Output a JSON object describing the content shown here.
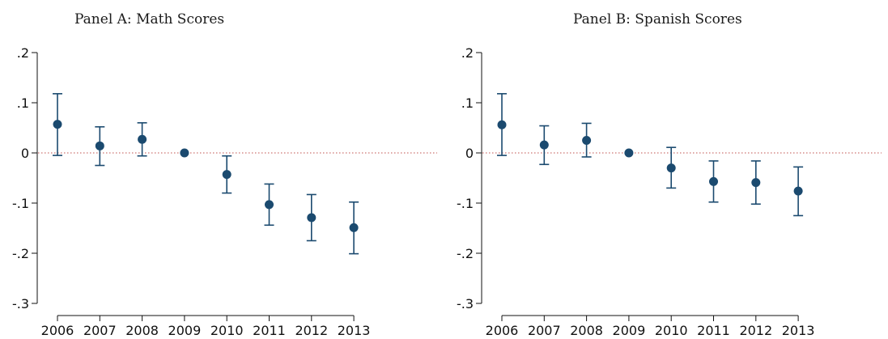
{
  "chart_data": [
    {
      "type": "scatter",
      "title": "Panel A: Math Scores",
      "xlabel": "",
      "ylabel": "",
      "categories": [
        "2006",
        "2007",
        "2008",
        "2009",
        "2010",
        "2011",
        "2012",
        "2013"
      ],
      "values": [
        0.057,
        0.014,
        0.027,
        0.0,
        -0.043,
        -0.103,
        -0.129,
        -0.149
      ],
      "ci_low": [
        -0.005,
        -0.025,
        -0.006,
        0.0,
        -0.08,
        -0.144,
        -0.175,
        -0.201
      ],
      "ci_high": [
        0.118,
        0.052,
        0.06,
        0.0,
        -0.006,
        -0.062,
        -0.083,
        -0.098
      ],
      "ylim": [
        -0.3,
        0.2
      ],
      "yticks": [
        ".2",
        ".1",
        "0",
        "-.1",
        "-.2",
        "-.3"
      ],
      "ytick_values": [
        0.2,
        0.1,
        0.0,
        -0.1,
        -0.2,
        -0.3
      ],
      "reference_line": 0,
      "grid": false,
      "marker_color": "#1b4a6f",
      "reference_line_color": "#c0504d"
    },
    {
      "type": "scatter",
      "title": "Panel B: Spanish Scores",
      "xlabel": "",
      "ylabel": "",
      "categories": [
        "2006",
        "2007",
        "2008",
        "2009",
        "2010",
        "2011",
        "2012",
        "2013"
      ],
      "values": [
        0.056,
        0.016,
        0.025,
        0.0,
        -0.03,
        -0.057,
        -0.059,
        -0.076
      ],
      "ci_low": [
        -0.005,
        -0.023,
        -0.008,
        0.0,
        -0.07,
        -0.098,
        -0.102,
        -0.125
      ],
      "ci_high": [
        0.118,
        0.054,
        0.059,
        0.0,
        0.011,
        -0.016,
        -0.016,
        -0.028
      ],
      "ylim": [
        -0.3,
        0.2
      ],
      "yticks": [
        ".2",
        ".1",
        "0",
        "-.1",
        "-.2",
        "-.3"
      ],
      "ytick_values": [
        0.2,
        0.1,
        0.0,
        -0.1,
        -0.2,
        -0.3
      ],
      "reference_line": 0,
      "grid": false,
      "marker_color": "#1b4a6f",
      "reference_line_color": "#c0504d"
    }
  ]
}
